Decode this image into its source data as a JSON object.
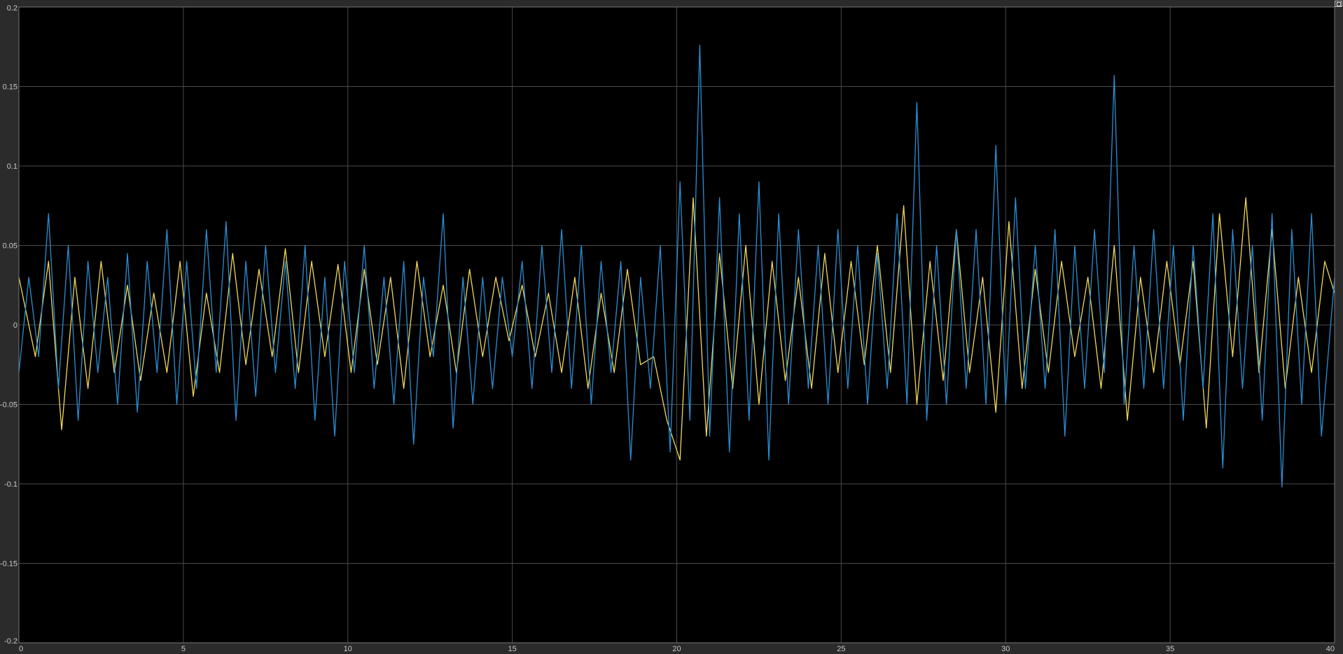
{
  "colors": {
    "background": "#000000",
    "frame": "#2b2b2b",
    "grid": "#4a4a4a",
    "tick_text": "#c8c8c8",
    "series_yellow": "#f2d85a",
    "series_blue": "#2a8fd6"
  },
  "icons": {
    "corner": "restore-window-icon"
  },
  "chart_data": {
    "type": "line",
    "title": "",
    "xlabel": "",
    "ylabel": "",
    "xlim": [
      0,
      40
    ],
    "ylim": [
      -0.2,
      0.2
    ],
    "grid": true,
    "legend": "none",
    "x_ticks": [
      "0",
      "5",
      "10",
      "15",
      "20",
      "25",
      "30",
      "35",
      "40"
    ],
    "y_ticks": [
      "0.2",
      "0.15",
      "0.1",
      "0.05",
      "0",
      "-0.05",
      "-0.1",
      "-0.15",
      "-0.2"
    ],
    "series": [
      {
        "color": "#f2d85a",
        "x": [
          0,
          0.5,
          0.9,
          1.3,
          1.7,
          2.1,
          2.5,
          2.9,
          3.3,
          3.7,
          4.1,
          4.5,
          4.9,
          5.3,
          5.7,
          6.1,
          6.5,
          6.9,
          7.3,
          7.7,
          8.1,
          8.5,
          8.9,
          9.3,
          9.7,
          10.1,
          10.5,
          10.9,
          11.3,
          11.7,
          12.1,
          12.5,
          12.9,
          13.3,
          13.7,
          14.1,
          14.5,
          14.9,
          15.3,
          15.7,
          16.1,
          16.5,
          16.9,
          17.3,
          17.7,
          18.1,
          18.5,
          18.9,
          19.3,
          19.7,
          20.1,
          20.5,
          20.9,
          21.3,
          21.7,
          22.1,
          22.5,
          22.9,
          23.3,
          23.7,
          24.1,
          24.5,
          24.9,
          25.3,
          25.7,
          26.1,
          26.5,
          26.9,
          27.3,
          27.7,
          28.1,
          28.5,
          28.9,
          29.3,
          29.7,
          30.1,
          30.5,
          30.9,
          31.3,
          31.7,
          32.1,
          32.5,
          32.9,
          33.3,
          33.7,
          34.1,
          34.5,
          34.9,
          35.3,
          35.7,
          36.1,
          36.5,
          36.9,
          37.3,
          37.7,
          38.1,
          38.5,
          38.9,
          39.3,
          39.7,
          40
        ],
        "y": [
          0.03,
          -0.02,
          0.04,
          -0.066,
          0.03,
          -0.04,
          0.04,
          -0.03,
          0.025,
          -0.035,
          0.02,
          -0.03,
          0.04,
          -0.045,
          0.02,
          -0.03,
          0.045,
          -0.025,
          0.035,
          -0.02,
          0.048,
          -0.03,
          0.04,
          -0.02,
          0.038,
          -0.03,
          0.035,
          -0.025,
          0.03,
          -0.04,
          0.04,
          -0.02,
          0.025,
          -0.03,
          0.035,
          -0.02,
          0.03,
          -0.01,
          0.025,
          -0.02,
          0.02,
          -0.03,
          0.03,
          -0.04,
          0.02,
          -0.03,
          0.035,
          -0.025,
          -0.02,
          -0.06,
          -0.085,
          0.08,
          -0.07,
          0.045,
          -0.04,
          0.05,
          -0.05,
          0.04,
          -0.035,
          0.03,
          -0.04,
          0.045,
          -0.03,
          0.04,
          -0.025,
          0.05,
          -0.03,
          0.075,
          -0.05,
          0.04,
          -0.035,
          0.06,
          -0.03,
          0.03,
          -0.055,
          0.065,
          -0.04,
          0.035,
          -0.03,
          0.04,
          -0.02,
          0.03,
          -0.04,
          0.05,
          -0.06,
          0.03,
          -0.03,
          0.04,
          -0.025,
          0.04,
          -0.065,
          0.07,
          -0.02,
          0.08,
          -0.03,
          0.06,
          -0.04,
          0.03,
          -0.03,
          0.04,
          0.02
        ]
      },
      {
        "color": "#2a8fd6",
        "x": [
          0,
          0.3,
          0.6,
          0.9,
          1.2,
          1.5,
          1.8,
          2.1,
          2.4,
          2.7,
          3,
          3.3,
          3.6,
          3.9,
          4.2,
          4.5,
          4.8,
          5.1,
          5.4,
          5.7,
          6,
          6.3,
          6.6,
          6.9,
          7.2,
          7.5,
          7.8,
          8.1,
          8.4,
          8.7,
          9,
          9.3,
          9.6,
          9.9,
          10.2,
          10.5,
          10.8,
          11.1,
          11.4,
          11.7,
          12,
          12.3,
          12.6,
          12.9,
          13.2,
          13.5,
          13.8,
          14.1,
          14.4,
          14.7,
          15,
          15.3,
          15.6,
          15.9,
          16.2,
          16.5,
          16.8,
          17.1,
          17.4,
          17.7,
          18,
          18.3,
          18.6,
          18.9,
          19.2,
          19.5,
          19.8,
          20.1,
          20.4,
          20.7,
          21,
          21.3,
          21.6,
          21.9,
          22.2,
          22.5,
          22.8,
          23.1,
          23.4,
          23.7,
          24,
          24.3,
          24.6,
          24.9,
          25.2,
          25.5,
          25.8,
          26.1,
          26.4,
          26.7,
          27,
          27.3,
          27.6,
          27.9,
          28.2,
          28.5,
          28.8,
          29.1,
          29.4,
          29.7,
          30,
          30.3,
          30.6,
          30.9,
          31.2,
          31.5,
          31.8,
          32.1,
          32.4,
          32.7,
          33,
          33.3,
          33.6,
          33.9,
          34.2,
          34.5,
          34.8,
          35.1,
          35.4,
          35.7,
          36,
          36.3,
          36.6,
          36.9,
          37.2,
          37.5,
          37.8,
          38.1,
          38.4,
          38.7,
          39,
          39.3,
          39.6,
          40
        ],
        "y": [
          -0.03,
          0.03,
          -0.02,
          0.07,
          -0.04,
          0.05,
          -0.06,
          0.04,
          -0.03,
          0.03,
          -0.05,
          0.045,
          -0.055,
          0.04,
          -0.03,
          0.06,
          -0.05,
          0.04,
          -0.04,
          0.06,
          -0.03,
          0.065,
          -0.06,
          0.04,
          -0.045,
          0.05,
          -0.03,
          0.04,
          -0.04,
          0.05,
          -0.06,
          0.03,
          -0.07,
          0.04,
          -0.03,
          0.05,
          -0.04,
          0.03,
          -0.05,
          0.04,
          -0.075,
          0.03,
          -0.02,
          0.07,
          -0.065,
          0.03,
          -0.05,
          0.03,
          -0.04,
          0.03,
          -0.02,
          0.04,
          -0.04,
          0.05,
          -0.03,
          0.06,
          -0.04,
          0.05,
          -0.05,
          0.04,
          -0.03,
          0.04,
          -0.085,
          0.03,
          -0.04,
          0.05,
          -0.08,
          0.09,
          -0.06,
          0.176,
          -0.07,
          0.08,
          -0.08,
          0.07,
          -0.06,
          0.09,
          -0.085,
          0.07,
          -0.05,
          0.06,
          -0.04,
          0.05,
          -0.05,
          0.06,
          -0.04,
          0.05,
          -0.05,
          0.045,
          -0.04,
          0.07,
          -0.05,
          0.14,
          -0.06,
          0.05,
          -0.05,
          0.06,
          -0.04,
          0.06,
          -0.05,
          0.113,
          -0.05,
          0.08,
          -0.04,
          0.05,
          -0.04,
          0.06,
          -0.07,
          0.05,
          -0.04,
          0.06,
          -0.03,
          0.157,
          -0.05,
          0.05,
          -0.04,
          0.06,
          -0.04,
          0.05,
          -0.06,
          0.05,
          -0.04,
          0.07,
          -0.09,
          0.06,
          -0.04,
          0.05,
          -0.06,
          0.07,
          -0.102,
          0.06,
          -0.05,
          0.07,
          -0.07,
          0.03
        ]
      }
    ]
  }
}
